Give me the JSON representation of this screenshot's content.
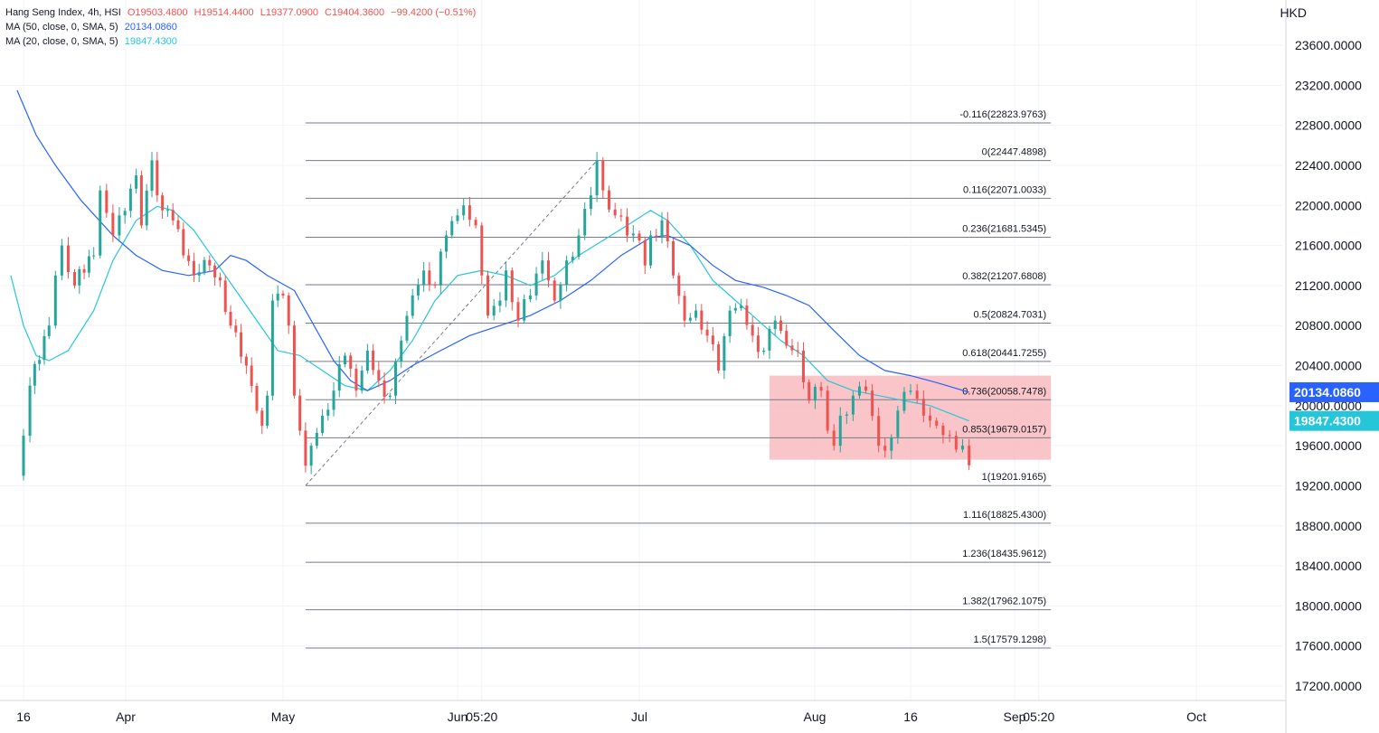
{
  "legend": {
    "symbol": "Hang Seng Index, 4h, HSI",
    "open": "O19503.4800",
    "high": "H19514.4400",
    "low": "L19377.0900",
    "close": "C19404.3600",
    "change": "−99.4200 (−0.51%)",
    "ma50_label": "MA (50, close, 0, SMA, 5)",
    "ma50_value": "20134.0860",
    "ma20_label": "MA (20, close, 0, SMA, 5)",
    "ma20_value": "19847.4300"
  },
  "currency": "HKD",
  "colors": {
    "up": "#26a69a",
    "down": "#ef5350",
    "ma50": "#2962ff",
    "ma20": "#26c6da",
    "fib_line": "#787b86",
    "zone_fill": "#f8bbbf"
  },
  "chart_data": {
    "type": "candlestick",
    "title": "Hang Seng Index, 4h, HSI",
    "ylim": [
      17000,
      23900
    ],
    "y_ticks": [
      "23600.0000",
      "23200.0000",
      "22800.0000",
      "22400.0000",
      "22000.0000",
      "21600.0000",
      "21200.0000",
      "20800.0000",
      "20400.0000",
      "20000.0000",
      "19600.0000",
      "19200.0000",
      "18800.0000",
      "18400.0000",
      "18000.0000",
      "17600.0000",
      "17200.0000"
    ],
    "x_ticks": [
      {
        "label": "16",
        "date": "2023-03-16"
      },
      {
        "label": "Apr",
        "date": "2023-04-01"
      },
      {
        "label": "May",
        "date": "2023-05-01"
      },
      {
        "label": "Jun",
        "date": "2023-06-01"
      },
      {
        "label": "05:20",
        "date": "2023-06-05"
      },
      {
        "label": "Jul",
        "date": "2023-07-01"
      },
      {
        "label": "Aug",
        "date": "2023-08-01"
      },
      {
        "label": "16",
        "date": "2023-08-16"
      },
      {
        "label": "Sep",
        "date": "2023-09-01"
      },
      {
        "label": "05:20",
        "date": "2023-09-05"
      },
      {
        "label": "Oct",
        "date": "2023-10-01"
      }
    ],
    "close_path": [
      {
        "date": "2023-03-15",
        "close": 19300
      },
      {
        "date": "2023-03-16",
        "close": 19700
      },
      {
        "date": "2023-03-17",
        "close": 20200
      },
      {
        "date": "2023-03-20",
        "close": 20800
      },
      {
        "date": "2023-03-21",
        "close": 21300
      },
      {
        "date": "2023-03-22",
        "close": 21600
      },
      {
        "date": "2023-03-24",
        "close": 21200
      },
      {
        "date": "2023-03-27",
        "close": 21500
      },
      {
        "date": "2023-03-28",
        "close": 22150
      },
      {
        "date": "2023-03-30",
        "close": 21700
      },
      {
        "date": "2023-03-31",
        "close": 21900
      },
      {
        "date": "2023-04-03",
        "close": 22300
      },
      {
        "date": "2023-04-04",
        "close": 21800
      },
      {
        "date": "2023-04-06",
        "close": 22450
      },
      {
        "date": "2023-04-07",
        "close": 22100
      },
      {
        "date": "2023-04-10",
        "close": 21850
      },
      {
        "date": "2023-04-12",
        "close": 21500
      },
      {
        "date": "2023-04-14",
        "close": 21300
      },
      {
        "date": "2023-04-17",
        "close": 21400
      },
      {
        "date": "2023-04-19",
        "close": 21250
      },
      {
        "date": "2023-04-21",
        "close": 20800
      },
      {
        "date": "2023-04-24",
        "close": 20400
      },
      {
        "date": "2023-04-26",
        "close": 19950
      },
      {
        "date": "2023-04-27",
        "close": 19800
      },
      {
        "date": "2023-04-28",
        "close": 20100
      },
      {
        "date": "2023-04-29",
        "close": 21050
      },
      {
        "date": "2023-05-01",
        "close": 21100
      },
      {
        "date": "2023-05-02",
        "close": 20800
      },
      {
        "date": "2023-05-03",
        "close": 20100
      },
      {
        "date": "2023-05-04",
        "close": 19750
      },
      {
        "date": "2023-05-05",
        "close": 19400
      },
      {
        "date": "2023-05-06",
        "close": 19600
      },
      {
        "date": "2023-05-08",
        "close": 19900
      },
      {
        "date": "2023-05-10",
        "close": 20150
      },
      {
        "date": "2023-05-12",
        "close": 20500
      },
      {
        "date": "2023-05-14",
        "close": 20150
      },
      {
        "date": "2023-05-16",
        "close": 20550
      },
      {
        "date": "2023-05-18",
        "close": 20250
      },
      {
        "date": "2023-05-20",
        "close": 20100
      },
      {
        "date": "2023-05-22",
        "close": 20650
      },
      {
        "date": "2023-05-24",
        "close": 21100
      },
      {
        "date": "2023-05-26",
        "close": 21350
      },
      {
        "date": "2023-05-28",
        "close": 21200
      },
      {
        "date": "2023-05-30",
        "close": 21700
      },
      {
        "date": "2023-06-01",
        "close": 21900
      },
      {
        "date": "2023-06-02",
        "close": 22000
      },
      {
        "date": "2023-06-04",
        "close": 21800
      },
      {
        "date": "2023-06-05",
        "close": 21300
      },
      {
        "date": "2023-06-06",
        "close": 20900
      },
      {
        "date": "2023-06-08",
        "close": 21050
      },
      {
        "date": "2023-06-09",
        "close": 21350
      },
      {
        "date": "2023-06-11",
        "close": 20850
      },
      {
        "date": "2023-06-13",
        "close": 21100
      },
      {
        "date": "2023-06-15",
        "close": 21450
      },
      {
        "date": "2023-06-17",
        "close": 21050
      },
      {
        "date": "2023-06-19",
        "close": 21450
      },
      {
        "date": "2023-06-21",
        "close": 21700
      },
      {
        "date": "2023-06-23",
        "close": 22100
      },
      {
        "date": "2023-06-24",
        "close": 22450
      },
      {
        "date": "2023-06-25",
        "close": 22150
      },
      {
        "date": "2023-06-27",
        "close": 21900
      },
      {
        "date": "2023-06-29",
        "close": 21700
      },
      {
        "date": "2023-07-01",
        "close": 21650
      },
      {
        "date": "2023-07-02",
        "close": 21400
      },
      {
        "date": "2023-07-03",
        "close": 21700
      },
      {
        "date": "2023-07-05",
        "close": 21850
      },
      {
        "date": "2023-07-07",
        "close": 21300
      },
      {
        "date": "2023-07-09",
        "close": 20850
      },
      {
        "date": "2023-07-11",
        "close": 20950
      },
      {
        "date": "2023-07-13",
        "close": 20700
      },
      {
        "date": "2023-07-15",
        "close": 20350
      },
      {
        "date": "2023-07-17",
        "close": 20950
      },
      {
        "date": "2023-07-19",
        "close": 21000
      },
      {
        "date": "2023-07-21",
        "close": 20700
      },
      {
        "date": "2023-07-23",
        "close": 20550
      },
      {
        "date": "2023-07-25",
        "close": 20850
      },
      {
        "date": "2023-07-27",
        "close": 20600
      },
      {
        "date": "2023-07-29",
        "close": 20550
      },
      {
        "date": "2023-07-31",
        "close": 20050
      },
      {
        "date": "2023-08-02",
        "close": 20150
      },
      {
        "date": "2023-08-03",
        "close": 19750
      },
      {
        "date": "2023-08-04",
        "close": 19600
      },
      {
        "date": "2023-08-05",
        "close": 19900
      },
      {
        "date": "2023-08-07",
        "close": 20100
      },
      {
        "date": "2023-08-09",
        "close": 20150
      },
      {
        "date": "2023-08-11",
        "close": 19600
      },
      {
        "date": "2023-08-12",
        "close": 19550
      },
      {
        "date": "2023-08-14",
        "close": 19950
      },
      {
        "date": "2023-08-16",
        "close": 20150
      },
      {
        "date": "2023-08-18",
        "close": 19900
      },
      {
        "date": "2023-08-20",
        "close": 19800
      },
      {
        "date": "2023-08-22",
        "close": 19700
      },
      {
        "date": "2023-08-24",
        "close": 19600
      },
      {
        "date": "2023-08-25",
        "close": 19404.36
      }
    ],
    "ma50_path": [
      {
        "date": "2023-03-15",
        "value": 23150
      },
      {
        "date": "2023-03-18",
        "value": 22700
      },
      {
        "date": "2023-03-21",
        "value": 22400
      },
      {
        "date": "2023-03-25",
        "value": 22050
      },
      {
        "date": "2023-03-30",
        "value": 21700
      },
      {
        "date": "2023-04-03",
        "value": 21500
      },
      {
        "date": "2023-04-08",
        "value": 21350
      },
      {
        "date": "2023-04-13",
        "value": 21300
      },
      {
        "date": "2023-04-18",
        "value": 21350
      },
      {
        "date": "2023-04-21",
        "value": 21500
      },
      {
        "date": "2023-04-24",
        "value": 21450
      },
      {
        "date": "2023-04-28",
        "value": 21300
      },
      {
        "date": "2023-05-03",
        "value": 21150
      },
      {
        "date": "2023-05-06",
        "value": 20850
      },
      {
        "date": "2023-05-10",
        "value": 20450
      },
      {
        "date": "2023-05-13",
        "value": 20250
      },
      {
        "date": "2023-05-16",
        "value": 20150
      },
      {
        "date": "2023-05-20",
        "value": 20250
      },
      {
        "date": "2023-05-24",
        "value": 20400
      },
      {
        "date": "2023-05-29",
        "value": 20550
      },
      {
        "date": "2023-06-03",
        "value": 20700
      },
      {
        "date": "2023-06-08",
        "value": 20800
      },
      {
        "date": "2023-06-13",
        "value": 20900
      },
      {
        "date": "2023-06-18",
        "value": 21050
      },
      {
        "date": "2023-06-23",
        "value": 21250
      },
      {
        "date": "2023-06-28",
        "value": 21500
      },
      {
        "date": "2023-07-03",
        "value": 21680
      },
      {
        "date": "2023-07-06",
        "value": 21700
      },
      {
        "date": "2023-07-10",
        "value": 21600
      },
      {
        "date": "2023-07-14",
        "value": 21400
      },
      {
        "date": "2023-07-18",
        "value": 21250
      },
      {
        "date": "2023-07-23",
        "value": 21180
      },
      {
        "date": "2023-07-27",
        "value": 21100
      },
      {
        "date": "2023-07-31",
        "value": 21000
      },
      {
        "date": "2023-08-04",
        "value": 20750
      },
      {
        "date": "2023-08-08",
        "value": 20500
      },
      {
        "date": "2023-08-12",
        "value": 20350
      },
      {
        "date": "2023-08-16",
        "value": 20300
      },
      {
        "date": "2023-08-20",
        "value": 20230
      },
      {
        "date": "2023-08-25",
        "value": 20134.086
      }
    ],
    "ma20_path": [
      {
        "date": "2023-03-14",
        "value": 21300
      },
      {
        "date": "2023-03-16",
        "value": 20800
      },
      {
        "date": "2023-03-18",
        "value": 20500
      },
      {
        "date": "2023-03-20",
        "value": 20450
      },
      {
        "date": "2023-03-23",
        "value": 20550
      },
      {
        "date": "2023-03-27",
        "value": 20950
      },
      {
        "date": "2023-03-30",
        "value": 21450
      },
      {
        "date": "2023-04-03",
        "value": 21850
      },
      {
        "date": "2023-04-07",
        "value": 21990
      },
      {
        "date": "2023-04-10",
        "value": 21950
      },
      {
        "date": "2023-04-14",
        "value": 21750
      },
      {
        "date": "2023-04-18",
        "value": 21450
      },
      {
        "date": "2023-04-22",
        "value": 21150
      },
      {
        "date": "2023-04-26",
        "value": 20850
      },
      {
        "date": "2023-04-30",
        "value": 20550
      },
      {
        "date": "2023-05-04",
        "value": 20500
      },
      {
        "date": "2023-05-08",
        "value": 20350
      },
      {
        "date": "2023-05-12",
        "value": 20200
      },
      {
        "date": "2023-05-16",
        "value": 20150
      },
      {
        "date": "2023-05-20",
        "value": 20350
      },
      {
        "date": "2023-05-24",
        "value": 20650
      },
      {
        "date": "2023-05-28",
        "value": 21050
      },
      {
        "date": "2023-06-01",
        "value": 21300
      },
      {
        "date": "2023-06-05",
        "value": 21350
      },
      {
        "date": "2023-06-09",
        "value": 21300
      },
      {
        "date": "2023-06-13",
        "value": 21200
      },
      {
        "date": "2023-06-17",
        "value": 21300
      },
      {
        "date": "2023-06-21",
        "value": 21500
      },
      {
        "date": "2023-06-25",
        "value": 21650
      },
      {
        "date": "2023-06-29",
        "value": 21800
      },
      {
        "date": "2023-07-03",
        "value": 21950
      },
      {
        "date": "2023-07-06",
        "value": 21850
      },
      {
        "date": "2023-07-10",
        "value": 21600
      },
      {
        "date": "2023-07-14",
        "value": 21250
      },
      {
        "date": "2023-07-18",
        "value": 21050
      },
      {
        "date": "2023-07-22",
        "value": 20850
      },
      {
        "date": "2023-07-26",
        "value": 20650
      },
      {
        "date": "2023-07-30",
        "value": 20500
      },
      {
        "date": "2023-08-03",
        "value": 20250
      },
      {
        "date": "2023-08-07",
        "value": 20150
      },
      {
        "date": "2023-08-11",
        "value": 20100
      },
      {
        "date": "2023-08-15",
        "value": 20050
      },
      {
        "date": "2023-08-19",
        "value": 20000
      },
      {
        "date": "2023-08-25",
        "value": 19847.43
      }
    ],
    "fib_levels": [
      {
        "ratio": "-0.116",
        "price": 22823.9763,
        "label": "-0.116(22823.9763)"
      },
      {
        "ratio": "0",
        "price": 22447.4898,
        "label": "0(22447.4898)"
      },
      {
        "ratio": "0.116",
        "price": 22071.0033,
        "label": "0.116(22071.0033)"
      },
      {
        "ratio": "0.236",
        "price": 21681.5345,
        "label": "0.236(21681.5345)"
      },
      {
        "ratio": "0.382",
        "price": 21207.6808,
        "label": "0.382(21207.6808)"
      },
      {
        "ratio": "0.5",
        "price": 20824.7031,
        "label": "0.5(20824.7031)"
      },
      {
        "ratio": "0.618",
        "price": 20441.7255,
        "label": "0.618(20441.7255)"
      },
      {
        "ratio": "0.736",
        "price": 20058.7478,
        "label": "0.736(20058.7478)"
      },
      {
        "ratio": "0.853",
        "price": 19679.0157,
        "label": "0.853(19679.0157)"
      },
      {
        "ratio": "1",
        "price": 19201.9165,
        "label": "1(19201.9165)"
      },
      {
        "ratio": "1.116",
        "price": 18825.43,
        "label": "1.116(18825.4300)"
      },
      {
        "ratio": "1.236",
        "price": 18435.9612,
        "label": "1.236(18435.9612)"
      },
      {
        "ratio": "1.382",
        "price": 17962.1075,
        "label": "1.382(17962.1075)"
      },
      {
        "ratio": "1.5",
        "price": 17579.1298,
        "label": "1.5(17579.1298)"
      }
    ],
    "fib_start_date": "2023-05-05",
    "fib_end_date": "2023-09-07",
    "trend_line": {
      "from": {
        "date": "2023-05-05",
        "price": 19201.9165
      },
      "to": {
        "date": "2023-06-24",
        "price": 22447.4898
      }
    },
    "zone": {
      "from_date": "2023-07-24",
      "to_date": "2023-09-07",
      "top": 20300,
      "bottom": 19460
    },
    "price_tags": [
      {
        "label": "20134.0860",
        "price": 20134.086,
        "series": "ma50"
      },
      {
        "label": "19847.4300",
        "price": 19847.43,
        "series": "ma20"
      }
    ]
  }
}
